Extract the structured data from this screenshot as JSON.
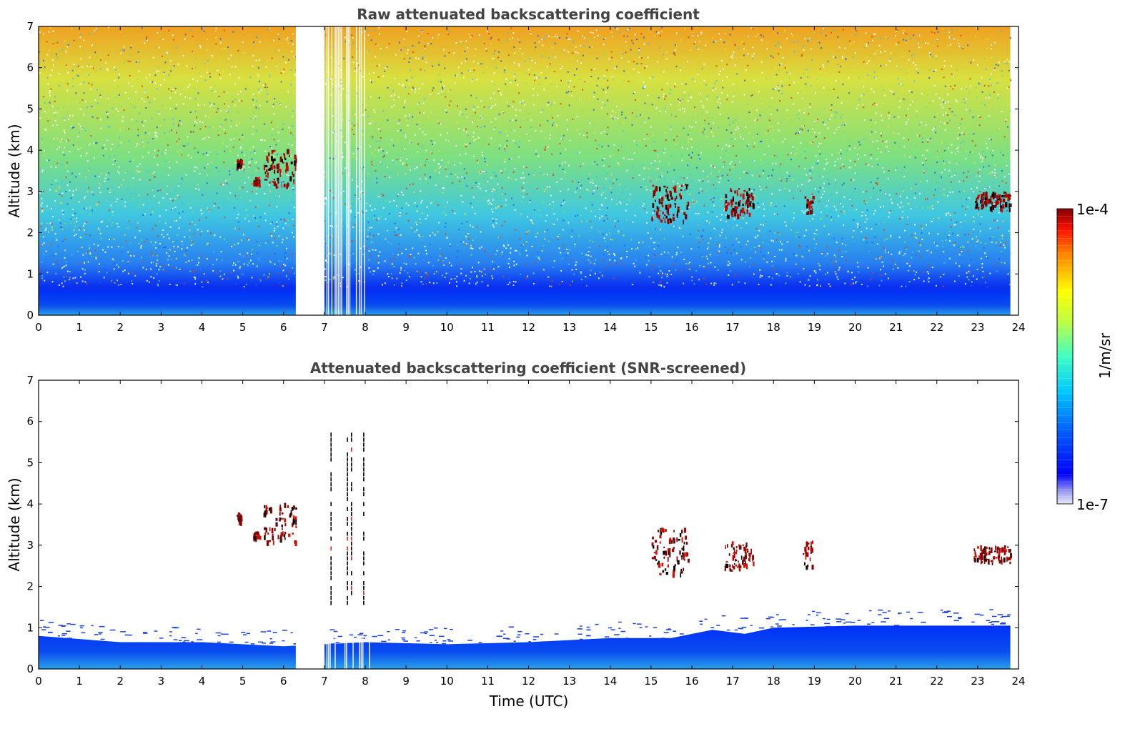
{
  "chart_data": [
    {
      "type": "heatmap",
      "title": "Raw attenuated backscattering coefficient",
      "xlabel": "",
      "ylabel": "Altitude (km)",
      "xlim": [
        0,
        24
      ],
      "ylim": [
        0,
        7
      ],
      "x_ticks": [
        0,
        1,
        2,
        3,
        4,
        5,
        6,
        7,
        8,
        9,
        10,
        11,
        12,
        13,
        14,
        15,
        16,
        17,
        18,
        19,
        20,
        21,
        22,
        23,
        24
      ],
      "y_ticks": [
        0,
        1,
        2,
        3,
        4,
        5,
        6,
        7
      ],
      "data_gap_hours": [
        [
          6.3,
          7.0
        ]
      ],
      "data_end_hour": 23.8,
      "boundary_layer_top_km": 0.6,
      "cloud_layers": [
        {
          "start": 4.85,
          "end": 4.95,
          "base_km": 3.6,
          "top_km": 3.8
        },
        {
          "start": 5.25,
          "end": 5.4,
          "base_km": 3.2,
          "top_km": 3.35
        },
        {
          "start": 5.5,
          "end": 6.3,
          "base_km": 3.1,
          "top_km": 4.05
        },
        {
          "start": 15.0,
          "end": 15.9,
          "base_km": 2.3,
          "top_km": 3.2
        },
        {
          "start": 16.8,
          "end": 17.5,
          "base_km": 2.4,
          "top_km": 3.1
        },
        {
          "start": 18.7,
          "end": 18.95,
          "base_km": 2.5,
          "top_km": 2.9
        },
        {
          "start": 22.9,
          "end": 23.8,
          "base_km": 2.6,
          "top_km": 3.0
        }
      ]
    },
    {
      "type": "heatmap",
      "title": "Attenuated backscattering coefficient (SNR-screened)",
      "xlabel": "Time (UTC)",
      "ylabel": "Altitude (km)",
      "xlim": [
        0,
        24
      ],
      "ylim": [
        0,
        7
      ],
      "x_ticks": [
        0,
        1,
        2,
        3,
        4,
        5,
        6,
        7,
        8,
        9,
        10,
        11,
        12,
        13,
        14,
        15,
        16,
        17,
        18,
        19,
        20,
        21,
        22,
        23,
        24
      ],
      "y_ticks": [
        0,
        1,
        2,
        3,
        4,
        5,
        6,
        7
      ],
      "data_gap_hours": [
        [
          6.3,
          7.0
        ]
      ],
      "data_end_hour": 23.8,
      "boundary_layer_top_km": [
        {
          "hour": 0,
          "km": 0.8
        },
        {
          "hour": 2,
          "km": 0.65
        },
        {
          "hour": 4,
          "km": 0.65
        },
        {
          "hour": 6,
          "km": 0.55
        },
        {
          "hour": 8,
          "km": 0.65
        },
        {
          "hour": 10,
          "km": 0.6
        },
        {
          "hour": 12,
          "km": 0.65
        },
        {
          "hour": 14,
          "km": 0.75
        },
        {
          "hour": 15.5,
          "km": 0.75
        },
        {
          "hour": 16.5,
          "km": 0.95
        },
        {
          "hour": 17.3,
          "km": 0.85
        },
        {
          "hour": 18,
          "km": 1.0
        },
        {
          "hour": 20,
          "km": 1.05
        },
        {
          "hour": 22,
          "km": 1.05
        },
        {
          "hour": 23.8,
          "km": 1.05
        }
      ],
      "cloud_layers": [
        {
          "start": 4.85,
          "end": 4.95,
          "base_km": 3.6,
          "top_km": 3.8
        },
        {
          "start": 5.25,
          "end": 5.4,
          "base_km": 3.2,
          "top_km": 3.35
        },
        {
          "start": 5.5,
          "end": 6.3,
          "base_km": 3.1,
          "top_km": 4.05
        },
        {
          "start": 15.0,
          "end": 15.9,
          "base_km": 2.3,
          "top_km": 3.45
        },
        {
          "start": 16.8,
          "end": 17.5,
          "base_km": 2.4,
          "top_km": 3.1
        },
        {
          "start": 18.7,
          "end": 18.95,
          "base_km": 2.5,
          "top_km": 3.15
        },
        {
          "start": 22.9,
          "end": 23.8,
          "base_km": 2.6,
          "top_km": 3.0
        }
      ],
      "vertical_streaks_hours": [
        7.15,
        7.55,
        7.65,
        7.95
      ],
      "streak_range_km": [
        1.55,
        5.65
      ]
    }
  ],
  "colorbar": {
    "min_label": "1e-7",
    "max_label": "1e-4",
    "unit_label": "1/m/sr",
    "scale": "log",
    "colormap": "jet"
  }
}
